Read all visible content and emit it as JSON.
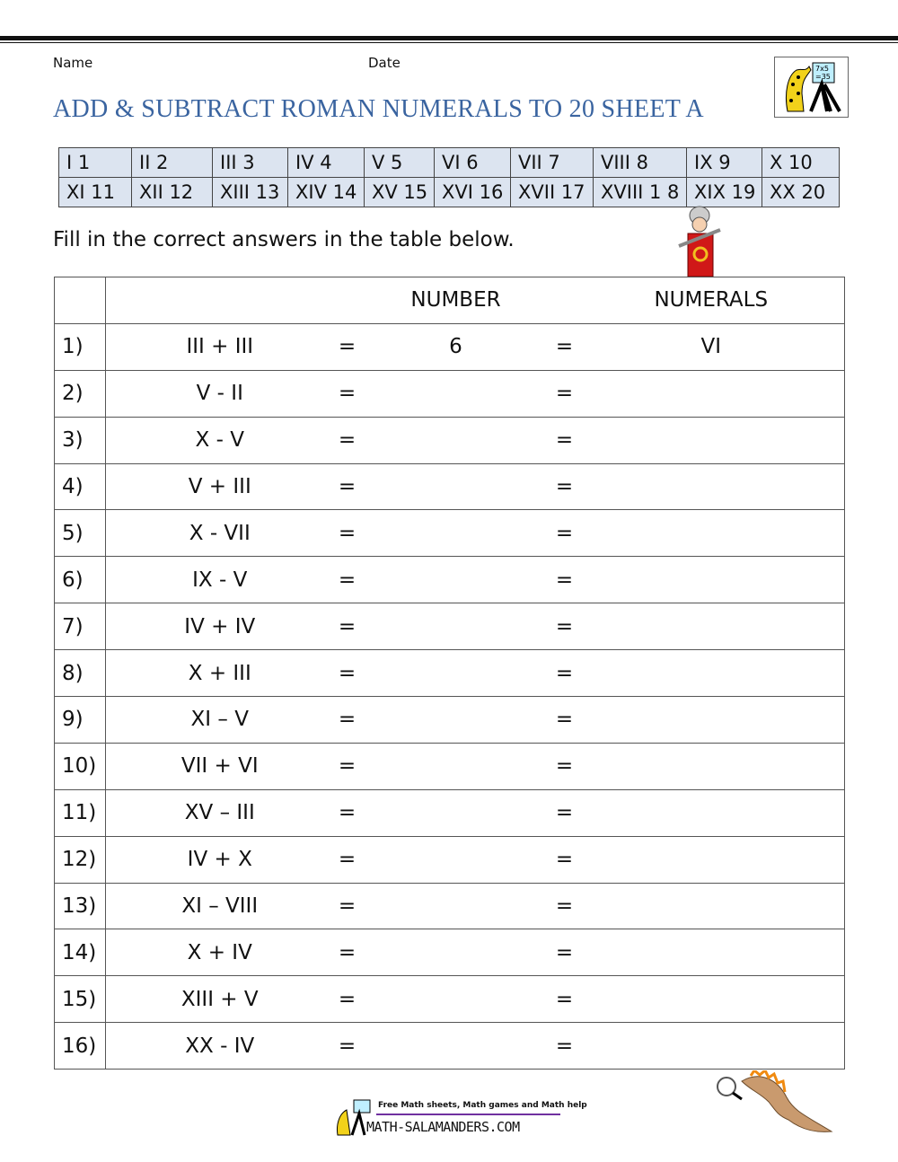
{
  "header": {
    "name_label": "Name",
    "date_label": "Date",
    "title": "ADD & SUBTRACT ROMAN NUMERALS TO 20 SHEET A"
  },
  "reference": {
    "rows": [
      [
        "I 1",
        "II 2",
        "III 3",
        "IV 4",
        "V 5",
        "VI 6",
        "VII 7",
        "VIII 8",
        "IX 9",
        "X 10"
      ],
      [
        "XI 11",
        "XII 12",
        "XIII 13",
        "XIV 14",
        "XV 15",
        "XVI 16",
        "XVII 17",
        "XVIII 1 8",
        "XIX 19",
        "XX 20"
      ]
    ]
  },
  "instructions": "Fill in the correct answers in the table below.",
  "table": {
    "headers": {
      "number": "NUMBER",
      "numerals": "NUMERALS"
    },
    "equals": "=",
    "rows": [
      {
        "n": "1)",
        "expr": "III + III",
        "number": "6",
        "numeral": "VI"
      },
      {
        "n": "2)",
        "expr": "V - II",
        "number": "",
        "numeral": ""
      },
      {
        "n": "3)",
        "expr": "X - V",
        "number": "",
        "numeral": ""
      },
      {
        "n": "4)",
        "expr": "V + III",
        "number": "",
        "numeral": ""
      },
      {
        "n": "5)",
        "expr": "X - VII",
        "number": "",
        "numeral": ""
      },
      {
        "n": "6)",
        "expr": "IX - V",
        "number": "",
        "numeral": ""
      },
      {
        "n": "7)",
        "expr": "IV + IV",
        "number": "",
        "numeral": ""
      },
      {
        "n": "8)",
        "expr": "X + III",
        "number": "",
        "numeral": ""
      },
      {
        "n": "9)",
        "expr": "XI – V",
        "number": "",
        "numeral": ""
      },
      {
        "n": "10)",
        "expr": "VII + VI",
        "number": "",
        "numeral": ""
      },
      {
        "n": "11)",
        "expr": "XV – III",
        "number": "",
        "numeral": ""
      },
      {
        "n": "12)",
        "expr": "IV + X",
        "number": "",
        "numeral": ""
      },
      {
        "n": "13)",
        "expr": "XI – VIII",
        "number": "",
        "numeral": ""
      },
      {
        "n": "14)",
        "expr": "X + IV",
        "number": "",
        "numeral": ""
      },
      {
        "n": "15)",
        "expr": "XIII + V",
        "number": "",
        "numeral": ""
      },
      {
        "n": "16)",
        "expr": "XX - IV",
        "number": "",
        "numeral": ""
      }
    ]
  },
  "footer": {
    "tagline": "Free Math sheets, Math games and Math help",
    "site": "MATH-SALAMANDERS.COM"
  },
  "colors": {
    "title": "#3a64a0",
    "reference_bg": "#dce4f0",
    "footer_rule": "#7030a0"
  }
}
